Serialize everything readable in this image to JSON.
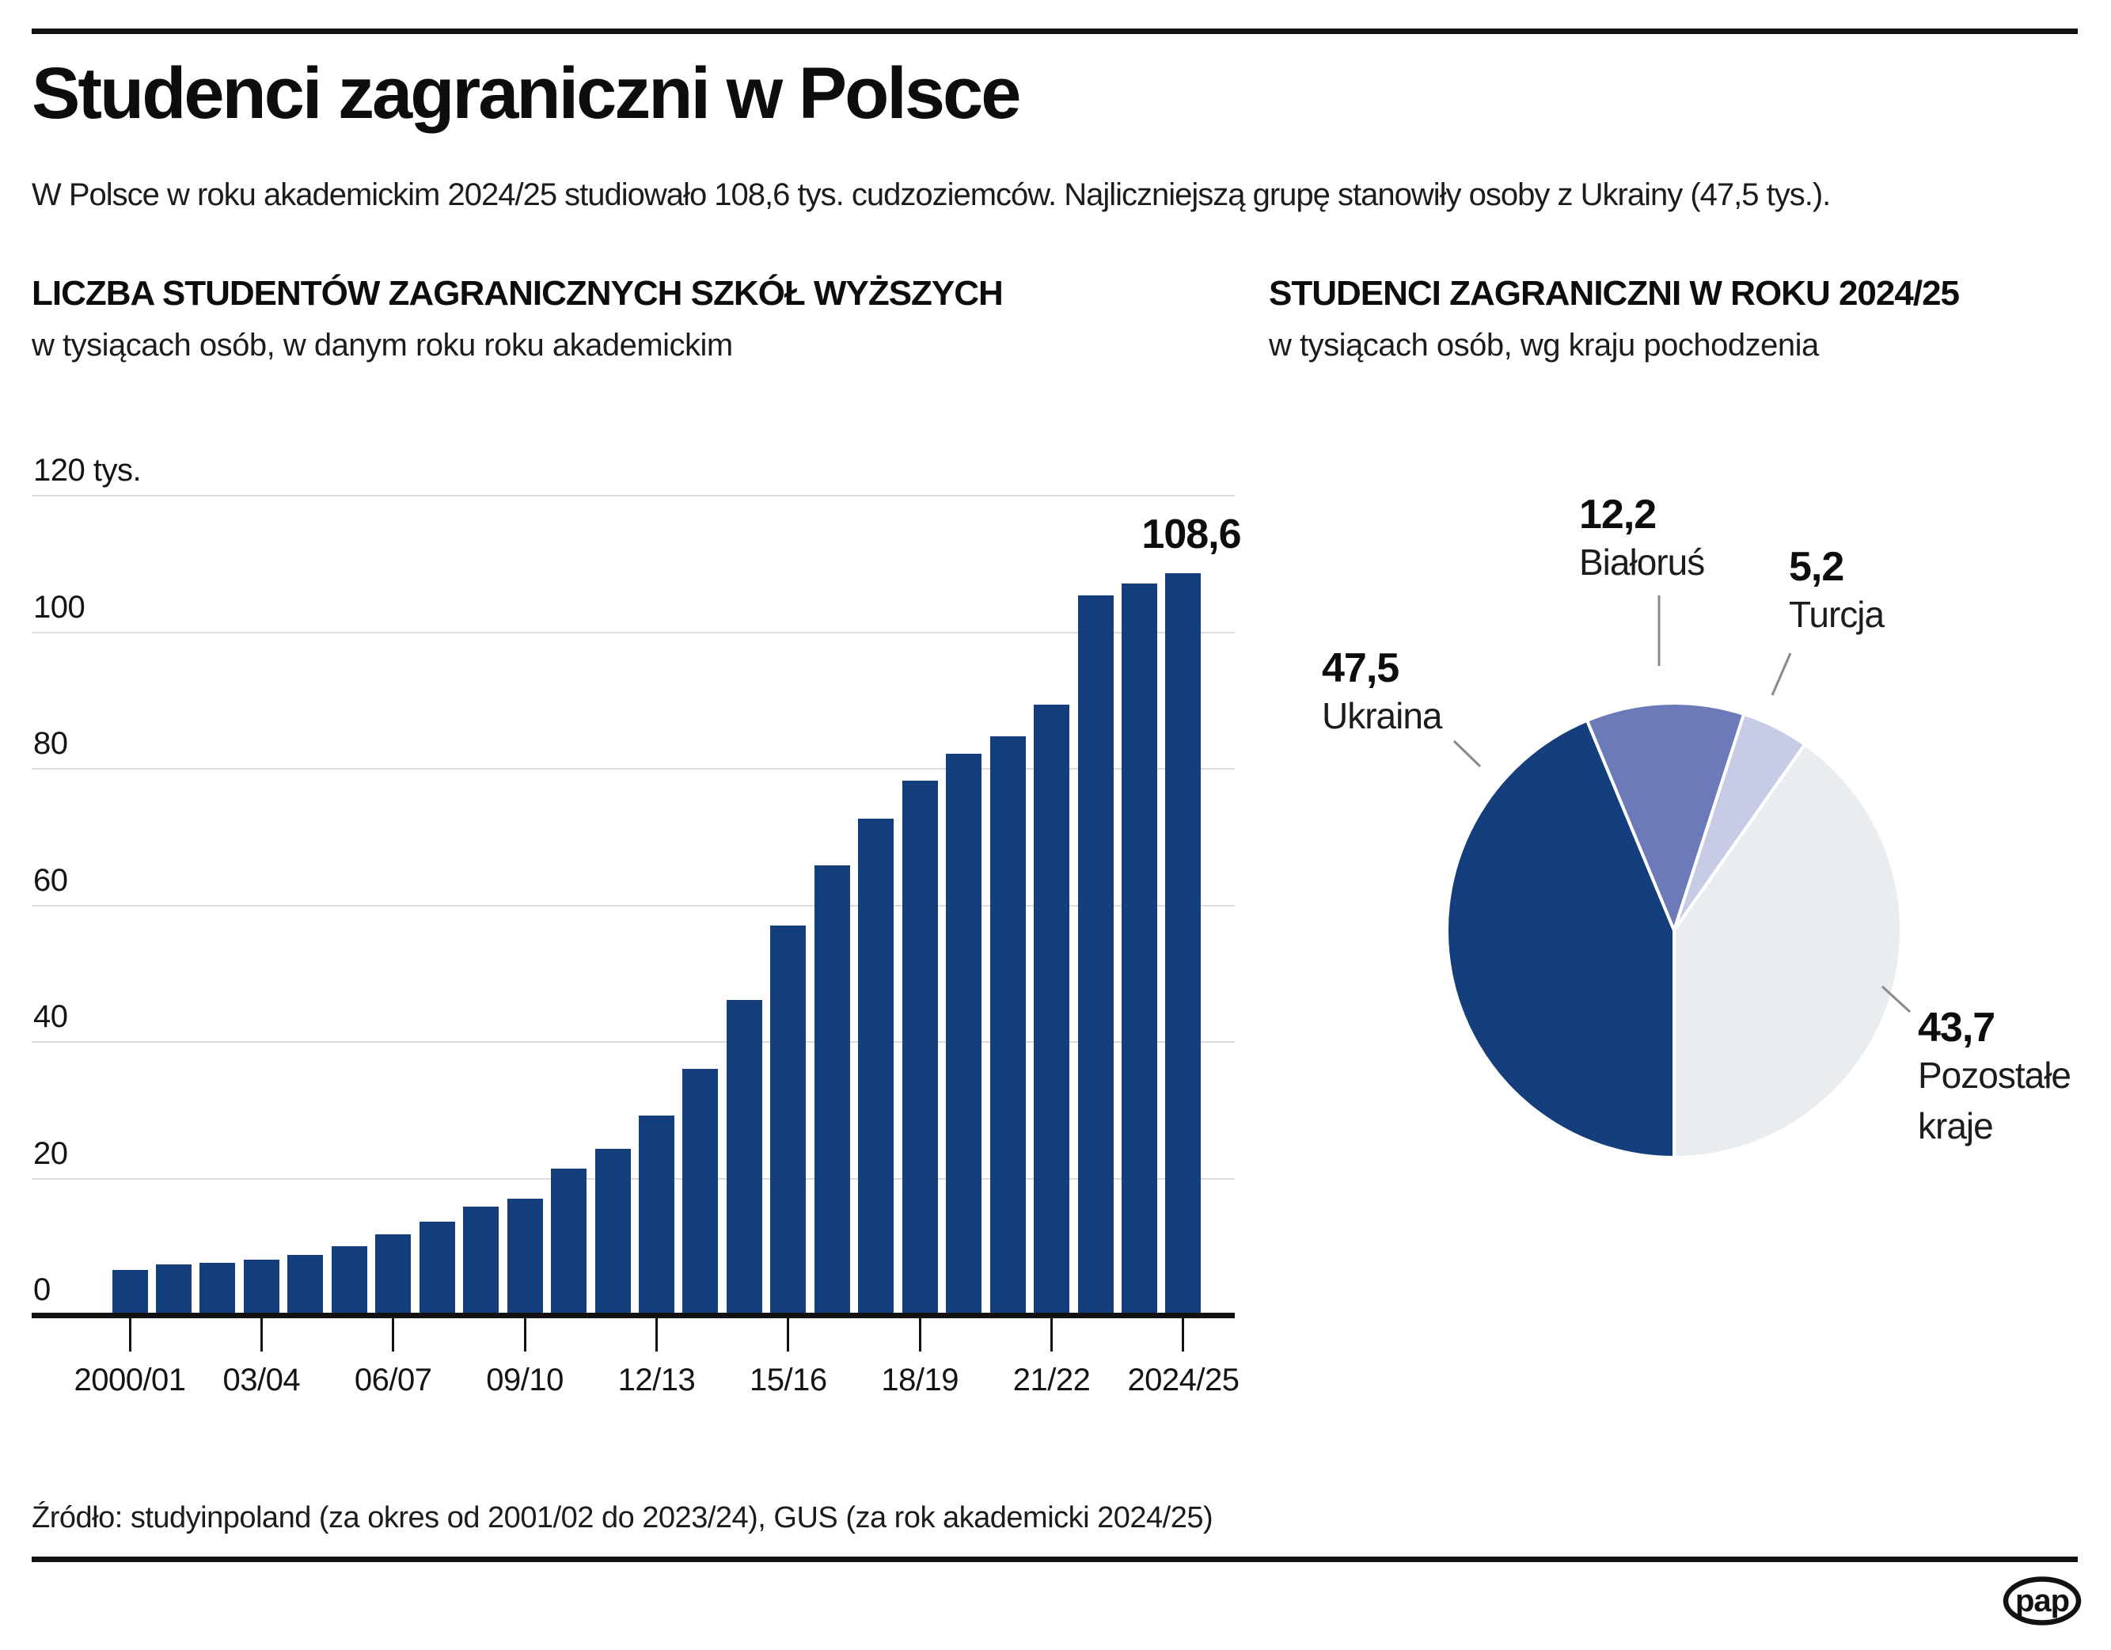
{
  "header": {
    "title": "Studenci zagraniczni w Polsce",
    "subtitle": "W Polsce w roku akademickim 2024/25 studiowało 108,6 tys. cudzoziemców. Najliczniejszą grupę stanowiły osoby z Ukrainy (47,5 tys.)."
  },
  "sections": {
    "bar": {
      "title": "LICZBA STUDENTÓW ZAGRANICZNYCH SZKÓŁ WYŻSZYCH",
      "subtitle": "w tysiącach osób, w danym roku roku akademickim"
    },
    "pie": {
      "title": "STUDENCI ZAGRANICZNI W ROKU 2024/25",
      "subtitle": "w tysiącach osób, wg kraju pochodzenia"
    }
  },
  "chart_data": [
    {
      "type": "bar",
      "title": "LICZBA STUDENTÓW ZAGRANICZNYCH SZKÓŁ WYŻSZYCH",
      "unit": "tys. osób",
      "ylim": [
        0,
        120
      ],
      "grid": true,
      "bar_color": "#153e7c",
      "categories": [
        "2000/01",
        "2001/02",
        "2002/03",
        "2003/04",
        "2004/05",
        "2005/06",
        "2006/07",
        "2007/08",
        "2008/09",
        "2009/10",
        "2010/11",
        "2011/12",
        "2012/13",
        "2013/14",
        "2014/15",
        "2015/16",
        "2016/17",
        "2017/18",
        "2018/19",
        "2019/20",
        "2020/21",
        "2021/22",
        "2022/23",
        "2023/24",
        "2024/25"
      ],
      "values": [
        6.6,
        7.4,
        7.6,
        8.1,
        8.8,
        10.1,
        11.8,
        13.7,
        15.9,
        17.0,
        21.5,
        24.3,
        29.2,
        36.0,
        46.1,
        57.1,
        65.8,
        72.7,
        78.3,
        82.2,
        84.7,
        89.4,
        105.4,
        107.1,
        108.6
      ],
      "y_axis": [
        {
          "v": 120,
          "label": "120 tys."
        },
        {
          "v": 100,
          "label": "100"
        },
        {
          "v": 80,
          "label": "80"
        },
        {
          "v": 60,
          "label": "60"
        },
        {
          "v": 40,
          "label": "40"
        },
        {
          "v": 20,
          "label": "20"
        },
        {
          "v": 0,
          "label": "0"
        }
      ],
      "x_axis": [
        {
          "index": 0,
          "label": "2000/01"
        },
        {
          "index": 3,
          "label": "03/04"
        },
        {
          "index": 6,
          "label": "06/07"
        },
        {
          "index": 9,
          "label": "09/10"
        },
        {
          "index": 12,
          "label": "12/13"
        },
        {
          "index": 15,
          "label": "15/16"
        },
        {
          "index": 18,
          "label": "18/19"
        },
        {
          "index": 21,
          "label": "21/22"
        },
        {
          "index": 24,
          "label": "2024/25"
        }
      ],
      "annotation": {
        "label": "108,6",
        "value": 108.6,
        "category": "2024/25"
      }
    },
    {
      "type": "pie",
      "title": "STUDENCI ZAGRANICZNI W ROKU 2024/25",
      "unit": "tys. osób",
      "start_angle_deg": 180,
      "direction": "clockwise",
      "slices": [
        {
          "label": "Ukraina",
          "value": 47.5,
          "value_label": "47,5",
          "color": "#153e7c"
        },
        {
          "label": "Białoruś",
          "value": 12.2,
          "value_label": "12,2",
          "color": "#6d7ab9"
        },
        {
          "label": "Turcja",
          "value": 5.2,
          "value_label": "5,2",
          "color": "#c8cbe6"
        },
        {
          "label": "Pozostałe kraje",
          "value": 43.7,
          "value_label": "43,7",
          "color": "#e9edf0"
        }
      ]
    }
  ],
  "footer": {
    "source": "Źródło: studyinpoland (za okres od 2001/02 do 2023/24), GUS (za rok akademicki 2024/25)",
    "logo_text": "pap"
  }
}
